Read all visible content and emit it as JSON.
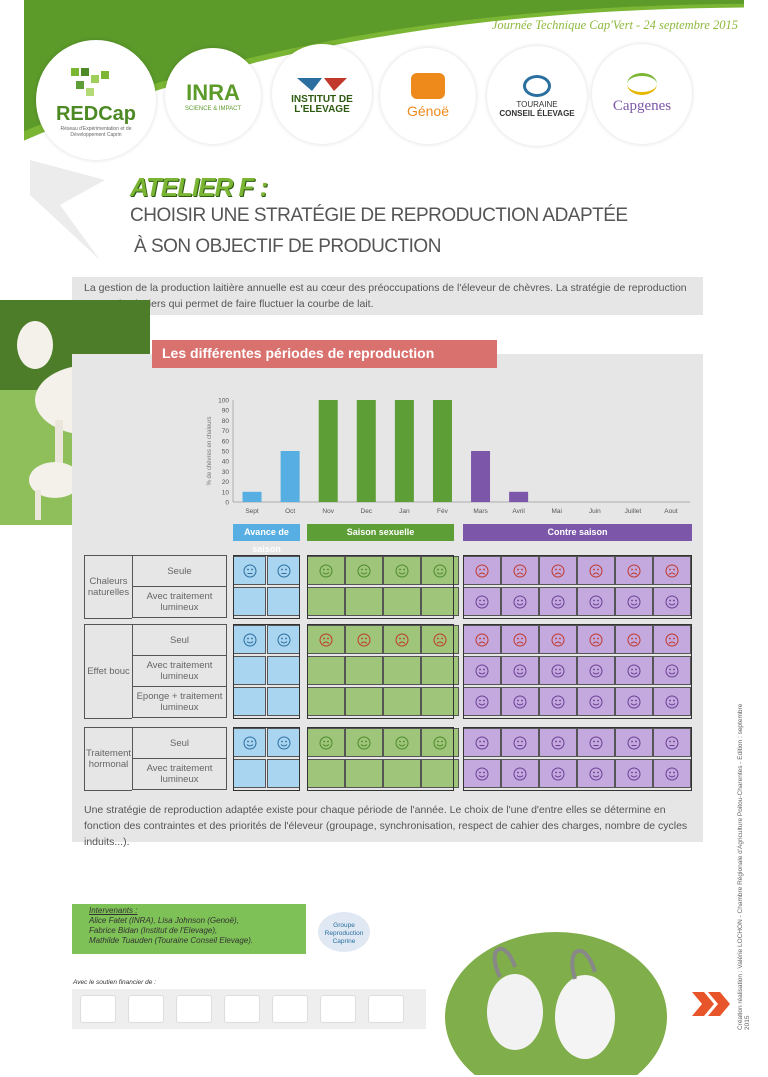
{
  "header": {
    "event": "Journée Technique Cap'Vert - 24 septembre 2015",
    "logos": [
      {
        "name": "REDCap",
        "sub": "Réseau d'Expérimentation et de Développement Caprin"
      },
      {
        "name": "INRA",
        "sub": "SCIENCE & IMPACT"
      },
      {
        "name": "INSTITUT DE L'ELEVAGE",
        "sub": ""
      },
      {
        "name": "Génoë",
        "sub": ""
      },
      {
        "name": "TOURAINE",
        "sub": "CONSEIL ÉLEVAGE"
      },
      {
        "name": "Capgenes",
        "sub": ""
      }
    ]
  },
  "title": {
    "atelier": "ATELIER F :",
    "line1": "CHOISIR UNE STRATÉGIE DE REPRODUCTION ADAPTÉE",
    "line2": "À SON OBJECTIF DE PRODUCTION"
  },
  "intro": "La gestion de la production laitière annuelle est au cœur des préoccupations de l'éleveur de chèvres. La stratégie de reproduction est un des leviers qui permet de faire fluctuer la courbe de lait.",
  "section_title": "Les différentes périodes de reproduction",
  "chart_data": {
    "type": "bar",
    "categories": [
      "Sept",
      "Oct",
      "Nov",
      "Dec",
      "Jan",
      "Fév",
      "Mars",
      "Avril",
      "Mai",
      "Juin",
      "Juillet",
      "Aout"
    ],
    "values": [
      10,
      50,
      100,
      100,
      100,
      100,
      50,
      10,
      0,
      0,
      0,
      0
    ],
    "colors": [
      "#56aee2",
      "#56aee2",
      "#5e9e36",
      "#5e9e36",
      "#5e9e36",
      "#5e9e36",
      "#7c56a8",
      "#7c56a8",
      "#7c56a8",
      "#7c56a8",
      "#7c56a8",
      "#7c56a8"
    ],
    "ylabel": "% de chèvres en chaleurs",
    "ylim": [
      0,
      100
    ],
    "yticks": [
      "0",
      "10",
      "20",
      "30",
      "40",
      "50",
      "60",
      "70",
      "80",
      "90",
      "100"
    ],
    "grid": false
  },
  "seasons": [
    {
      "label": "Avance de saison",
      "color": "#56aee2"
    },
    {
      "label": "Saison sexuelle",
      "color": "#5e9e36"
    },
    {
      "label": "Contre saison",
      "color": "#7c56a8"
    }
  ],
  "colors": {
    "blue": "#a9d5f1",
    "green": "#9fc57a",
    "purple": "#c4a9df",
    "blue_icon": "#2b6fa0",
    "green_icon": "#4b8a2a",
    "purple_icon": "#6a3f94",
    "red_icon": "#c0392b"
  },
  "groups": [
    {
      "label": "Chaleurs naturelles",
      "rows": [
        {
          "label": "Seule",
          "cells": [
            "neutral",
            "neutral",
            "happy",
            "happy",
            "happy",
            "happy",
            "sad",
            "sad",
            "sad",
            "sad",
            "sad",
            "sad"
          ]
        },
        {
          "label": "Avec traitement lumineux",
          "cells": [
            "",
            "",
            "",
            "",
            "",
            "",
            "happy",
            "happy",
            "happy",
            "happy",
            "happy",
            "happy"
          ]
        }
      ]
    },
    {
      "label": "Effet bouc",
      "rows": [
        {
          "label": "Seul",
          "cells": [
            "happy",
            "happy",
            "sad",
            "sad",
            "sad",
            "sad",
            "sad",
            "sad",
            "sad",
            "sad",
            "sad",
            "sad"
          ]
        },
        {
          "label": "Avec traitement lumineux",
          "cells": [
            "",
            "",
            "",
            "",
            "",
            "",
            "happy",
            "happy",
            "happy",
            "happy",
            "happy",
            "happy"
          ]
        },
        {
          "label": "Eponge + traitement lumineux",
          "cells": [
            "",
            "",
            "",
            "",
            "",
            "",
            "happy",
            "happy",
            "happy",
            "happy",
            "happy",
            "happy"
          ]
        }
      ]
    },
    {
      "label": "Traitement hormonal",
      "rows": [
        {
          "label": "Seul",
          "cells": [
            "happy",
            "happy",
            "happy",
            "happy",
            "happy",
            "happy",
            "neutral",
            "neutral",
            "neutral",
            "neutral",
            "neutral",
            "neutral"
          ]
        },
        {
          "label": "Avec traitement lumineux",
          "cells": [
            "",
            "",
            "",
            "",
            "",
            "",
            "happy",
            "happy",
            "happy",
            "happy",
            "happy",
            "happy"
          ]
        }
      ]
    }
  ],
  "conclusion": "Une stratégie de reproduction adaptée existe pour chaque période de l'année. Le choix de l'une d'entre elles se détermine en fonction des contraintes et des priorités de l'éleveur (groupage, synchronisation, respect de cahier des charges, nombre de cycles induits...).",
  "speakers": {
    "heading": "Intervenants :",
    "lines": [
      "Alice Fatet (INRA), Lisa Johnson (Genoë),",
      "Fabrice Bidan (Institut de l'Elevage),",
      "Mathilde Tuauden (Touraine Conseil Elevage)."
    ]
  },
  "badge": "Groupe Reproduction Caprine",
  "sponsors_label": "Avec le soutien financier de :",
  "credit": "Création réalisation : Valérie LOCHON - Chambre Régionale d'Agriculture Poitou-Charentes - Edition : septembre 2015"
}
